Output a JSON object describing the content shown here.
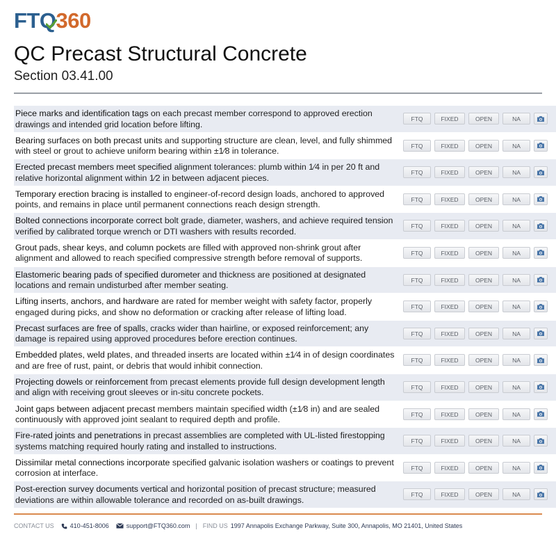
{
  "brand": {
    "logo_ftq": "FTQ",
    "logo_num": "360",
    "colors": {
      "primary": "#2b5f8f",
      "accent": "#d2692c",
      "check": "#5aa132"
    }
  },
  "header": {
    "title": "QC Precast Structural Concrete",
    "subtitle": "Section 03.41.00"
  },
  "buttons": {
    "ftq": "FTQ",
    "fixed": "FIXED",
    "open": "OPEN",
    "na": "NA",
    "camera_icon": "camera-icon"
  },
  "items": [
    {
      "lead": "Piece marks and identification tags",
      "rest": " on each precast member correspond to approved erection drawings and intended grid location before lifting."
    },
    {
      "lead": "Bearing surfaces on both precast units",
      "rest": " and supporting structure are clean, level, and fully shimmed with steel or grout to achieve uniform bearing within ±1⁄8 in tolerance."
    },
    {
      "lead": "Erected precast members meet specified",
      "rest": " alignment tolerances: plumb within 1⁄4 in per 20 ft and relative horizontal alignment within 1⁄2 in between adjacent pieces."
    },
    {
      "lead": "Temporary erection bracing is installed",
      "rest": " to engineer-of-record design loads, anchored to approved points, and remains in place until permanent connections reach design strength."
    },
    {
      "lead": "Bolted connections incorporate correct",
      "rest": " bolt grade, diameter, washers, and achieve required tension verified by calibrated torque wrench or DTI washers with results recorded."
    },
    {
      "lead": "Grout pads, shear keys, and column pockets",
      "rest": " are filled with approved non-shrink grout after alignment and allowed to reach specified compressive strength before removal of supports."
    },
    {
      "lead": "Elastomeric bearing pads of specified durometer",
      "rest": " and thickness are positioned at designated locations and remain undisturbed after member seating."
    },
    {
      "lead": "Lifting inserts, anchors, and hardware",
      "rest": " are rated for member weight with safety factor, properly engaged during picks, and show no deformation or cracking after release of lifting load."
    },
    {
      "lead": "Precast surfaces are free of spalls,",
      "rest": " cracks wider than hairline, or exposed reinforcement; any damage is repaired using approved procedures before erection continues."
    },
    {
      "lead": "Embedded plates, weld plates,",
      "rest": " and threaded inserts are located within ±1⁄4 in of design coordinates and are free of rust, paint, or debris that would inhibit connection."
    },
    {
      "lead": "Projecting dowels or reinforcement",
      "rest": " from precast elements provide full design development length and align with receiving grout sleeves or in-situ concrete pockets."
    },
    {
      "lead": "Joint gaps between adjacent precast",
      "rest": " members maintain specified width (±1⁄8 in) and are sealed continuously with approved joint sealant to required depth and profile."
    },
    {
      "lead": "Fire-rated joints and penetrations",
      "rest": " in precast assemblies are completed with UL-listed firestopping systems matching required hourly rating and installed to instructions."
    },
    {
      "lead": "Dissimilar metal connections incorporate",
      "rest": " specified galvanic isolation washers or coatings to prevent corrosion at interface."
    },
    {
      "lead": "Post-erection survey documents vertical",
      "rest": " and horizontal position of precast structure; measured deviations are within allowable tolerance and recorded on as-built drawings."
    }
  ],
  "footer": {
    "contact_label": "CONTACT US",
    "phone_icon": "phone-icon",
    "phone": "410-451-8006",
    "email_icon": "email-icon",
    "email": "support@FTQ360.com",
    "separator": "|",
    "find_label": "FIND US",
    "address": "1997 Annapolis Exchange Parkway, Suite 300, Annapolis, MO 21401, United States"
  }
}
